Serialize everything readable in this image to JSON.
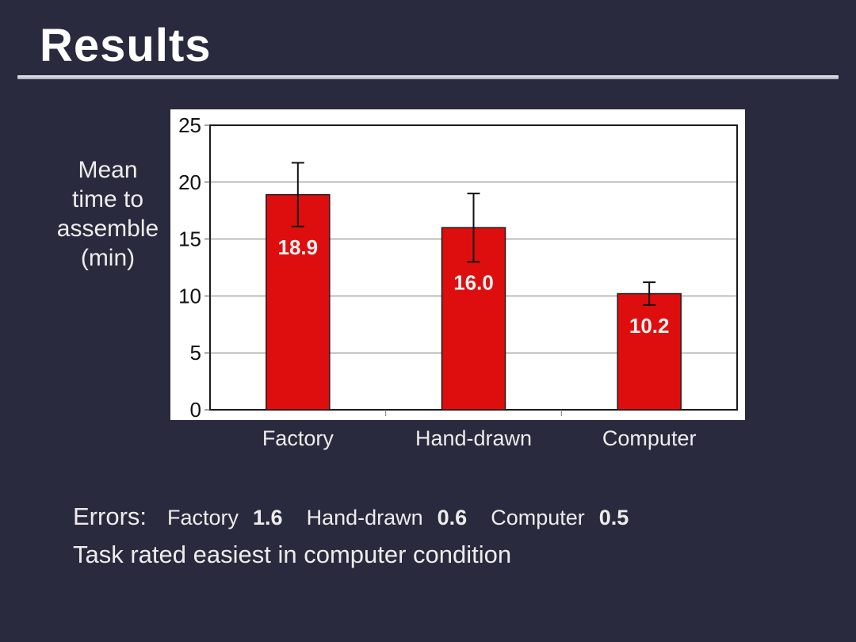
{
  "slide": {
    "title": "Results",
    "background_color": "#2A2A3E",
    "rule_color": "#C9CBD6",
    "text_color": "#ECECEC"
  },
  "chart_data": {
    "type": "bar",
    "title": "",
    "ylabel": "Mean time to assemble (min)",
    "ylabel_lines": [
      "Mean",
      "time to",
      "assemble",
      "(min)"
    ],
    "xlabel": "",
    "categories": [
      "Factory",
      "Hand-drawn",
      "Computer"
    ],
    "values": [
      18.9,
      16.0,
      10.2
    ],
    "bar_labels": [
      "18.9",
      "16.0",
      "10.2"
    ],
    "error_bars": [
      2.8,
      3.0,
      1.0
    ],
    "ylim": [
      0,
      25
    ],
    "yticks": [
      0,
      5,
      10,
      15,
      20,
      25
    ],
    "grid": true,
    "legend": "none",
    "panel_background": "#FFFFFF",
    "bar_color": "#DE0E0E",
    "bar_border_color": "#1A1A1A",
    "bar_label_color": "#F2F2F2",
    "gridline_color": "#7F7F7F",
    "axis_color": "#1A1A1A",
    "tick_label_color": "#111111"
  },
  "notes": {
    "errors_label": "Errors:",
    "errors": [
      {
        "name": "Factory",
        "value": "1.6"
      },
      {
        "name": "Hand-drawn",
        "value": "0.6"
      },
      {
        "name": "Computer",
        "value": "0.5"
      }
    ],
    "conclusion": "Task rated easiest in computer condition"
  }
}
